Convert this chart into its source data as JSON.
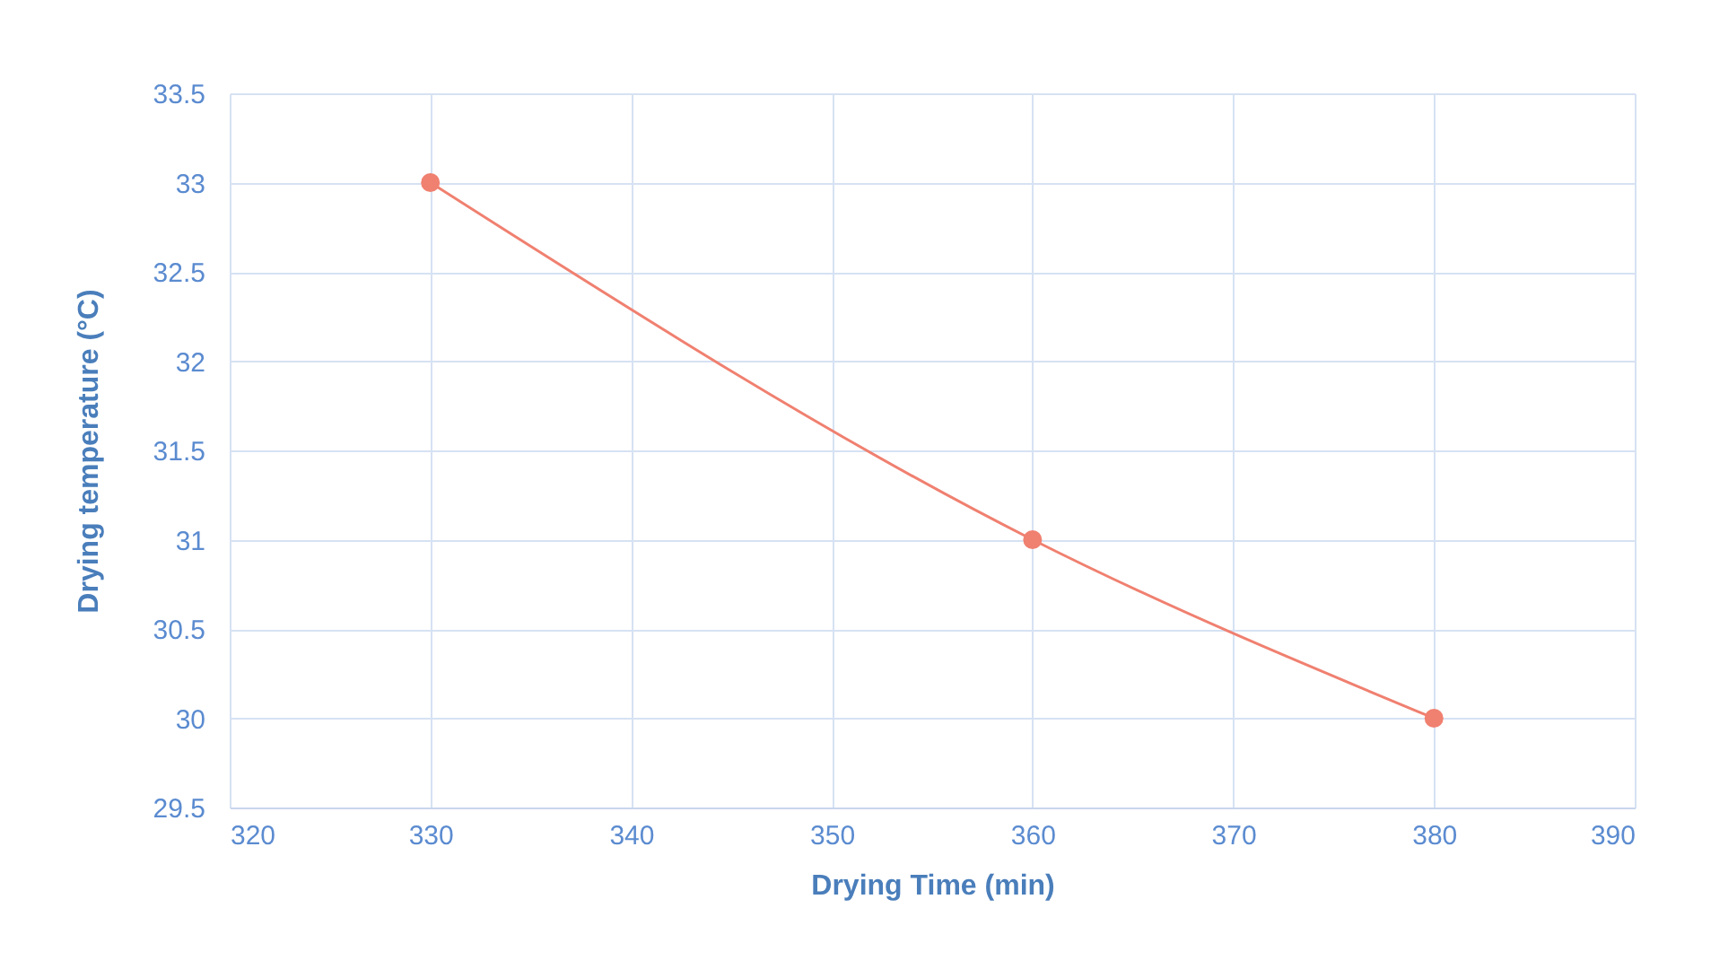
{
  "chart_data": {
    "type": "line",
    "xlabel": "Drying Time (min)",
    "ylabel": "Drying temperature (°C)",
    "x": [
      330,
      360,
      380
    ],
    "series": [
      {
        "color": "#f08070",
        "values": [
          33,
          31,
          30
        ]
      }
    ],
    "xlim": [
      320,
      390
    ],
    "xticks": [
      320,
      330,
      340,
      350,
      360,
      370,
      380,
      390
    ],
    "ylim": [
      29.5,
      33.5
    ],
    "yticks": [
      29.5,
      30,
      30.5,
      31,
      31.5,
      32,
      32.5,
      33,
      33.5
    ],
    "grid": true,
    "marker": "circle",
    "line_style": "solid",
    "legend": false
  }
}
